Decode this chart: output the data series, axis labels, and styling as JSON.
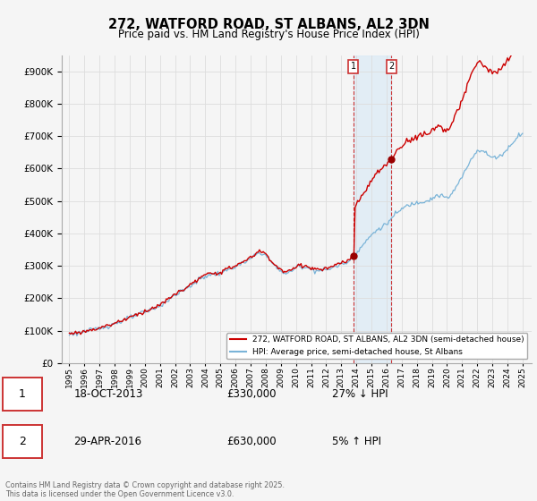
{
  "title": "272, WATFORD ROAD, ST ALBANS, AL2 3DN",
  "subtitle": "Price paid vs. HM Land Registry's House Price Index (HPI)",
  "ylim": [
    0,
    950000
  ],
  "yticks": [
    0,
    100000,
    200000,
    300000,
    400000,
    500000,
    600000,
    700000,
    800000,
    900000
  ],
  "sale1_date": "18-OCT-2013",
  "sale1_price": 330000,
  "sale1_x": 2013.79,
  "sale2_date": "29-APR-2016",
  "sale2_price": 630000,
  "sale2_x": 2016.32,
  "hpi_line_color": "#7ab4d8",
  "price_line_color": "#cc0000",
  "sale_marker_color": "#990000",
  "vline_color": "#cc3333",
  "shading_color": "#daeaf5",
  "background_color": "#f5f5f5",
  "grid_color": "#dddddd",
  "legend_label_red": "272, WATFORD ROAD, ST ALBANS, AL2 3DN (semi-detached house)",
  "legend_label_blue": "HPI: Average price, semi-detached house, St Albans",
  "footer": "Contains HM Land Registry data © Crown copyright and database right 2025.\nThis data is licensed under the Open Government Licence v3.0.",
  "sale1_label": "1",
  "sale2_label": "2",
  "sale1_hpi_diff": "27% ↓ HPI",
  "sale2_hpi_diff": "5% ↑ HPI"
}
